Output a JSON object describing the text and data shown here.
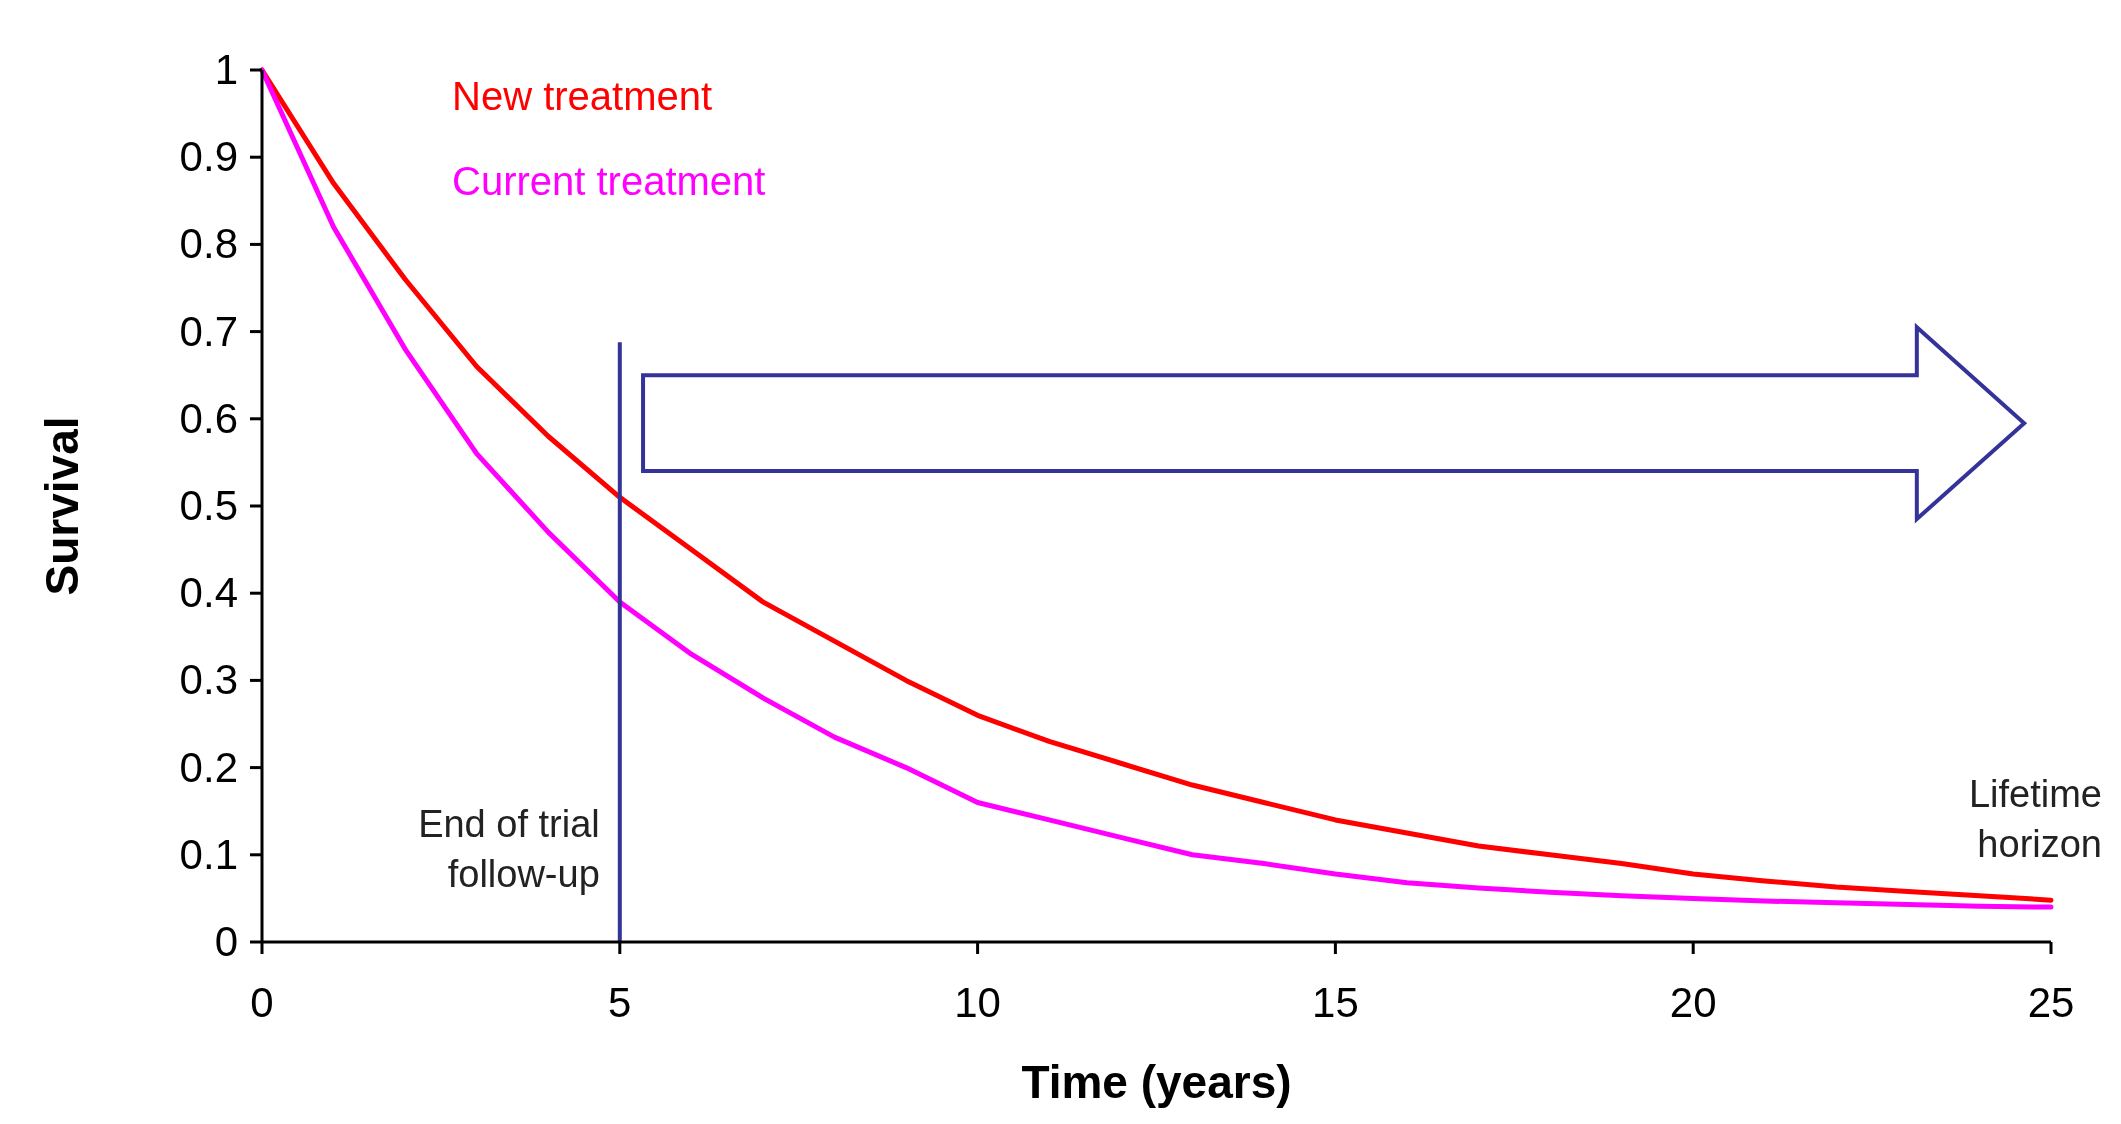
{
  "chart_data": {
    "type": "line",
    "xlabel": "Time (years)",
    "ylabel": "Survival",
    "x": [
      0,
      1,
      2,
      3,
      4,
      5,
      6,
      7,
      8,
      9,
      10,
      11,
      12,
      13,
      14,
      15,
      16,
      17,
      18,
      19,
      20,
      21,
      22,
      23,
      24,
      25
    ],
    "series": [
      {
        "name": "New treatment",
        "color": "#ff0000",
        "values": [
          1,
          0.87,
          0.76,
          0.66,
          0.58,
          0.51,
          0.45,
          0.39,
          0.345,
          0.3,
          0.26,
          0.23,
          0.205,
          0.18,
          0.16,
          0.14,
          0.125,
          0.11,
          0.1,
          0.09,
          0.078,
          0.07,
          0.063,
          0.058,
          0.053,
          0.048
        ]
      },
      {
        "name": "Current treatment",
        "color": "#ff00ff",
        "values": [
          1,
          0.82,
          0.68,
          0.56,
          0.47,
          0.39,
          0.33,
          0.28,
          0.235,
          0.2,
          0.16,
          0.14,
          0.12,
          0.1,
          0.09,
          0.078,
          0.068,
          0.062,
          0.057,
          0.053,
          0.05,
          0.047,
          0.045,
          0.043,
          0.041,
          0.04
        ]
      }
    ],
    "xlim": [
      0,
      25
    ],
    "xticks": [
      0,
      5,
      10,
      15,
      20,
      25
    ],
    "ylim": [
      0,
      1
    ],
    "yticks": [
      0,
      {
        "value": 0.1,
        "label": "0.1"
      },
      {
        "value": 0.2,
        "label": "0.2"
      },
      {
        "value": 0.3,
        "label": "0.3"
      },
      {
        "value": 0.4,
        "label": "0.4"
      },
      {
        "value": 0.5,
        "label": "0.5"
      },
      {
        "value": 0.6,
        "label": "0.6"
      },
      {
        "value": 0.7,
        "label": "0.7"
      },
      {
        "value": 0.8,
        "label": "0.8"
      },
      {
        "value": 0.9,
        "label": "0.9"
      },
      1
    ],
    "ref_lines": [
      {
        "axis": "x",
        "value": 5,
        "label": "End of trial follow-up",
        "color": "#333399"
      }
    ],
    "annotations": [
      "Lifetime horizon"
    ],
    "legend": "top left",
    "grid": false,
    "marker": "none",
    "line_style": "solid"
  }
}
